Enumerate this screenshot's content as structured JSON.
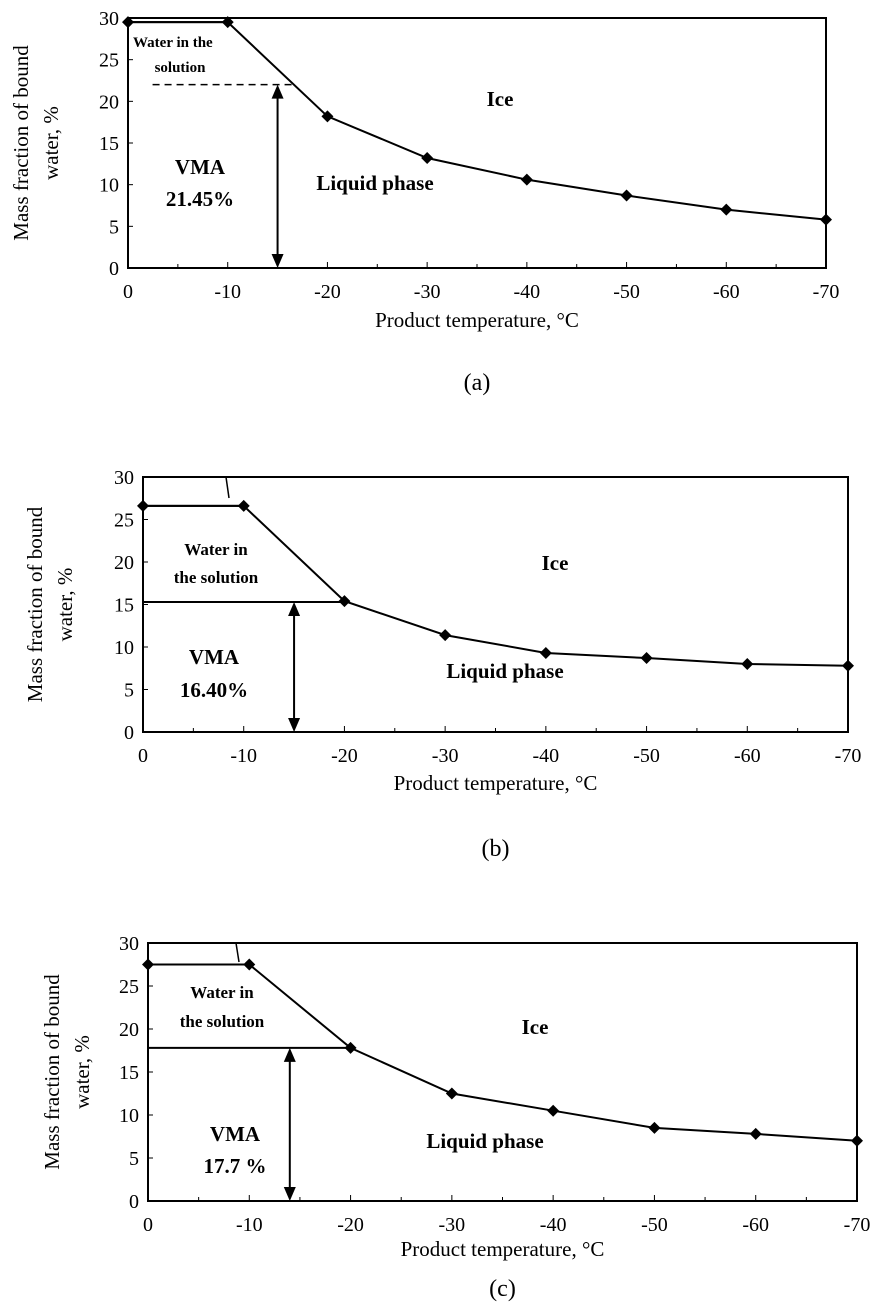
{
  "chart_data": [
    {
      "type": "line",
      "caption": "(a)",
      "xlabel": "Product temperature, °C",
      "ylabel_line1": "Mass fraction of bound",
      "ylabel_line2": "water,  %",
      "x": [
        0,
        -10,
        -20,
        -30,
        -40,
        -50,
        -60,
        -70
      ],
      "xlim": [
        0,
        -70
      ],
      "ylim": [
        0,
        30
      ],
      "yticks": [
        0,
        5,
        10,
        15,
        20,
        25,
        30
      ],
      "xticks": [
        0,
        -10,
        -20,
        -30,
        -40,
        -50,
        -60,
        -70
      ],
      "series": [
        {
          "values": [
            29.5,
            29.5,
            18.2,
            13.2,
            10.6,
            8.7,
            7.0,
            5.8
          ]
        }
      ],
      "annotations": {
        "ice": "Ice",
        "liquid": "Liquid phase",
        "water_line1": "Water in the",
        "water_line2": "solution",
        "vma_line1": "VMA",
        "vma_line2": "21.45%",
        "vma_value": 22,
        "arrow_x": -15
      },
      "grid": false
    },
    {
      "type": "line",
      "caption": "(b)",
      "xlabel": "Product temperature, °C",
      "ylabel_line1": "Mass fraction of bound",
      "ylabel_line2": "water,  %",
      "x": [
        0,
        -10,
        -20,
        -30,
        -40,
        -50,
        -60,
        -70
      ],
      "xlim": [
        0,
        -70
      ],
      "ylim": [
        0,
        30
      ],
      "yticks": [
        0,
        5,
        10,
        15,
        20,
        25,
        30
      ],
      "xticks": [
        0,
        -10,
        -20,
        -30,
        -40,
        -50,
        -60,
        -70
      ],
      "series": [
        {
          "values": [
            26.6,
            26.6,
            15.4,
            11.4,
            9.3,
            8.7,
            8.0,
            7.8
          ]
        }
      ],
      "annotations": {
        "ice": "Ice",
        "liquid": "Liquid phase",
        "water_line1": "Water in",
        "water_line2": "the solution",
        "vma_line1": "VMA",
        "vma_line2": "16.40%",
        "vma_value": 15.3,
        "arrow_x": -15
      },
      "grid": false
    },
    {
      "type": "line",
      "caption": "(c)",
      "xlabel": "Product temperature, °C",
      "ylabel_line1": "Mass fraction of bound",
      "ylabel_line2": "water,  %",
      "x": [
        0,
        -10,
        -20,
        -30,
        -40,
        -50,
        -60,
        -70
      ],
      "xlim": [
        0,
        -70
      ],
      "ylim": [
        0,
        30
      ],
      "yticks": [
        0,
        5,
        10,
        15,
        20,
        25,
        30
      ],
      "xticks": [
        0,
        -10,
        -20,
        -30,
        -40,
        -50,
        -60,
        -70
      ],
      "series": [
        {
          "values": [
            27.5,
            27.5,
            17.8,
            12.5,
            10.5,
            8.5,
            7.8,
            7.0
          ]
        }
      ],
      "annotations": {
        "ice": "Ice",
        "liquid": "Liquid phase",
        "water_line1": "Water in",
        "water_line2": "the solution",
        "vma_line1": "VMA",
        "vma_line2": "17.7 %",
        "vma_value": 17.8,
        "arrow_x": -14
      },
      "grid": false
    }
  ]
}
